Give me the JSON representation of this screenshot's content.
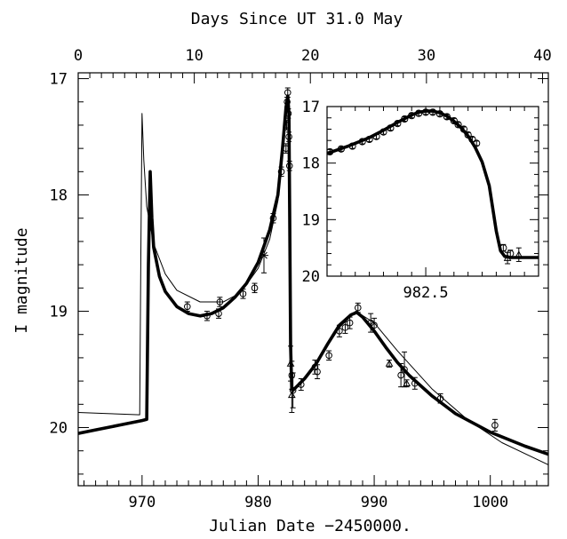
{
  "chart_data": {
    "type": "scatter",
    "title": "",
    "xlabel": "Julian Date −2450000.",
    "ylabel": "I magnitude",
    "top_xlabel": "Days Since UT 31.0 May",
    "xlim": [
      964.5,
      1005
    ],
    "ylim": [
      20.5,
      16.95
    ],
    "y_inverted": true,
    "x_ticks": [
      {
        "value": 970,
        "label": "970"
      },
      {
        "value": 980,
        "label": "980"
      },
      {
        "value": 990,
        "label": "990"
      },
      {
        "value": 1000,
        "label": "1000"
      }
    ],
    "top_ticks": [
      {
        "value": 0,
        "label": "0"
      },
      {
        "value": 10,
        "label": "10"
      },
      {
        "value": 20,
        "label": "20"
      },
      {
        "value": 30,
        "label": "30"
      },
      {
        "value": 40,
        "label": "40"
      }
    ],
    "top_offset": 964.5,
    "y_ticks": [
      {
        "value": 17,
        "label": "17"
      },
      {
        "value": 18,
        "label": "18"
      },
      {
        "value": 19,
        "label": "19"
      },
      {
        "value": 20,
        "label": "20"
      }
    ],
    "grid": false,
    "series": [
      {
        "kind": "line-thick",
        "x": [
          964.5,
          966,
          968,
          970,
          970.4,
          970.55,
          970.7,
          970.85,
          971,
          971.5,
          972,
          973,
          974,
          975,
          976,
          977,
          978,
          979,
          980,
          981,
          981.7,
          982.1,
          982.4,
          982.55,
          982.65,
          982.72,
          982.8,
          982.9,
          983,
          984,
          985,
          986,
          987,
          988,
          988.5,
          989,
          990,
          991,
          992,
          993,
          995,
          997,
          1000,
          1003,
          1005
        ],
        "y": [
          20.05,
          20.02,
          19.98,
          19.94,
          19.93,
          18.6,
          17.8,
          18.2,
          18.45,
          18.7,
          18.83,
          18.96,
          19.02,
          19.04,
          19.02,
          18.97,
          18.88,
          18.76,
          18.58,
          18.3,
          18.0,
          17.6,
          17.25,
          17.15,
          17.3,
          18.2,
          19.3,
          19.67,
          19.68,
          19.58,
          19.45,
          19.28,
          19.12,
          19.03,
          19.01,
          19.05,
          19.17,
          19.31,
          19.44,
          19.55,
          19.73,
          19.88,
          20.04,
          20.16,
          20.23
        ]
      },
      {
        "kind": "line-thin",
        "x": [
          964.5,
          967,
          969.8,
          969.9,
          970.0,
          970.15,
          970.4,
          971,
          972,
          973,
          975,
          977,
          978.5,
          980,
          981,
          981.7,
          982.1,
          982.4,
          982.55,
          982.65,
          982.72,
          982.8,
          982.9,
          983,
          985,
          987,
          988.4,
          990,
          992,
          995,
          998,
          1001,
          1005
        ],
        "y": [
          19.87,
          19.88,
          19.89,
          18.5,
          17.3,
          17.7,
          18.1,
          18.42,
          18.68,
          18.82,
          18.92,
          18.92,
          18.84,
          18.63,
          18.38,
          18.05,
          17.65,
          17.3,
          17.17,
          17.33,
          18.2,
          19.3,
          19.67,
          19.68,
          19.45,
          19.14,
          19.0,
          19.1,
          19.34,
          19.67,
          19.93,
          20.13,
          20.32
        ]
      },
      {
        "kind": "points",
        "points": [
          [
            973.9,
            18.96,
            0.04
          ],
          [
            975.6,
            19.04,
            0.04
          ],
          [
            976.6,
            19.02,
            0.04
          ],
          [
            976.7,
            18.92,
            0.04
          ],
          [
            978.7,
            18.85,
            0.04
          ],
          [
            979.7,
            18.8,
            0.04
          ],
          [
            981.3,
            18.2,
            0.04
          ],
          [
            982.0,
            17.8,
            0.04
          ],
          [
            982.4,
            17.6,
            0.04
          ],
          [
            982.45,
            17.4,
            0.04
          ],
          [
            982.5,
            17.2,
            0.04
          ],
          [
            982.55,
            17.12,
            0.04
          ],
          [
            982.6,
            17.3,
            0.04
          ],
          [
            982.65,
            17.5,
            0.04
          ],
          [
            982.7,
            17.75,
            0.04
          ],
          [
            982.9,
            19.55,
            0.12
          ],
          [
            983.0,
            19.68,
            0.15
          ],
          [
            983.7,
            19.63,
            0.05
          ],
          [
            984.9,
            19.48,
            0.06
          ],
          [
            985.1,
            19.52,
            0.06
          ],
          [
            986.1,
            19.38,
            0.04
          ],
          [
            987.0,
            19.17,
            0.05
          ],
          [
            987.5,
            19.14,
            0.05
          ],
          [
            987.9,
            19.1,
            0.05
          ],
          [
            988.6,
            18.97,
            0.04
          ],
          [
            989.7,
            19.1,
            0.08
          ],
          [
            990.0,
            19.12,
            0.06
          ],
          [
            992.3,
            19.55,
            0.1
          ],
          [
            992.6,
            19.5,
            0.15
          ],
          [
            993.5,
            19.62,
            0.05
          ],
          [
            995.7,
            19.75,
            0.04
          ],
          [
            1000.4,
            19.98,
            0.05
          ]
        ]
      },
      {
        "kind": "triangles",
        "points": [
          [
            982.8,
            19.45,
            0.15
          ],
          [
            982.9,
            19.72,
            0.15
          ],
          [
            991.3,
            19.45,
            0.03
          ],
          [
            992.8,
            19.62,
            0.03
          ]
        ]
      },
      {
        "kind": "stars",
        "points": [
          [
            980.5,
            18.52,
            0.15
          ]
        ]
      }
    ],
    "inset": {
      "xlim": [
        981.8,
        983.3
      ],
      "ylim": [
        20.0,
        17.0
      ],
      "x_ticks": [
        {
          "value": 982.5,
          "label": "982.5"
        }
      ],
      "y_ticks": [
        {
          "value": 17,
          "label": "17"
        },
        {
          "value": 18,
          "label": "18"
        },
        {
          "value": 19,
          "label": "19"
        },
        {
          "value": 20,
          "label": "20"
        }
      ],
      "curve": {
        "x": [
          981.8,
          981.95,
          982.1,
          982.2,
          982.3,
          982.4,
          982.45,
          982.5,
          982.55,
          982.6,
          982.65,
          982.7,
          982.75,
          982.8,
          982.85,
          982.9,
          982.95,
          983.0,
          983.03,
          983.06,
          983.1,
          983.2,
          983.3
        ],
        "y": [
          17.83,
          17.7,
          17.55,
          17.42,
          17.28,
          17.15,
          17.1,
          17.08,
          17.08,
          17.11,
          17.17,
          17.26,
          17.37,
          17.52,
          17.72,
          17.98,
          18.4,
          19.2,
          19.55,
          19.65,
          19.67,
          19.67,
          19.67
        ]
      },
      "points": [
        [
          981.82,
          17.8,
          0.04
        ],
        [
          981.9,
          17.75,
          0.04
        ],
        [
          981.98,
          17.7,
          0.04
        ],
        [
          982.05,
          17.62,
          0.04
        ],
        [
          982.1,
          17.58,
          0.04
        ],
        [
          982.15,
          17.53,
          0.04
        ],
        [
          982.2,
          17.45,
          0.04
        ],
        [
          982.25,
          17.38,
          0.04
        ],
        [
          982.3,
          17.3,
          0.04
        ],
        [
          982.35,
          17.22,
          0.04
        ],
        [
          982.4,
          17.16,
          0.04
        ],
        [
          982.45,
          17.12,
          0.04
        ],
        [
          982.5,
          17.1,
          0.04
        ],
        [
          982.55,
          17.1,
          0.04
        ],
        [
          982.6,
          17.13,
          0.04
        ],
        [
          982.65,
          17.18,
          0.04
        ],
        [
          982.7,
          17.25,
          0.04
        ],
        [
          982.73,
          17.32,
          0.04
        ],
        [
          982.77,
          17.4,
          0.04
        ],
        [
          982.8,
          17.5,
          0.04
        ],
        [
          982.83,
          17.58,
          0.04
        ],
        [
          982.86,
          17.65,
          0.04
        ],
        [
          983.05,
          19.5,
          0.06
        ],
        [
          983.1,
          19.6,
          0.06
        ]
      ],
      "triangles": [
        [
          983.08,
          19.68,
          0.1
        ],
        [
          983.16,
          19.62,
          0.12
        ]
      ]
    }
  }
}
